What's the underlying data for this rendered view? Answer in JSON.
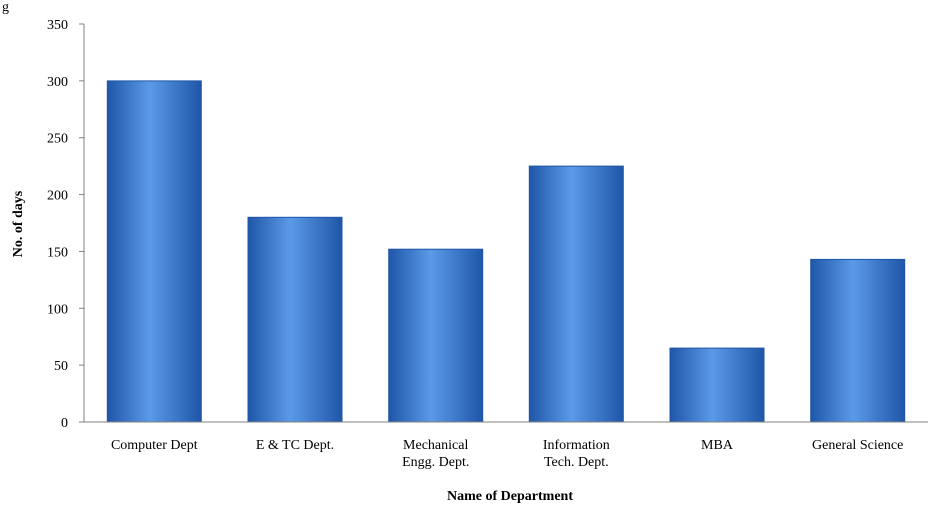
{
  "fragment_text": "g",
  "chart_data": {
    "type": "bar",
    "categories": [
      [
        "Computer Dept"
      ],
      [
        "E & TC Dept."
      ],
      [
        "Mechanical",
        "Engg. Dept."
      ],
      [
        "Information",
        "Tech. Dept."
      ],
      [
        "MBA"
      ],
      [
        "General Science"
      ]
    ],
    "values": [
      300,
      180,
      152,
      225,
      65,
      143
    ],
    "xlabel": "Name of Department",
    "ylabel": "No. of  days",
    "ylim": [
      0,
      350
    ],
    "yticks": [
      0,
      50,
      100,
      150,
      200,
      250,
      300,
      350
    ],
    "grid": false,
    "legend": "none",
    "colors": {
      "bar_dark": "#1f56a8",
      "bar_mid": "#3d7fd6",
      "bar_light": "#5b9ae8",
      "axis": "#808080"
    }
  }
}
